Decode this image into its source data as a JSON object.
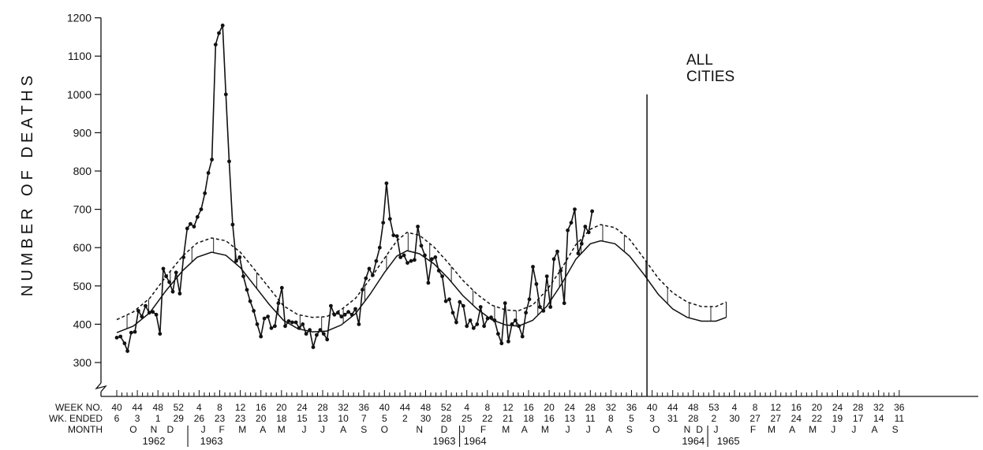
{
  "chart_data": {
    "type": "line",
    "title": "",
    "ylabel": "NUMBER OF DEATHS",
    "ylim": [
      300,
      1200
    ],
    "yticks": [
      300,
      400,
      500,
      600,
      700,
      800,
      900,
      1000,
      1100,
      1200
    ],
    "y_axis_break": true,
    "grid": false,
    "annotation": "ALL\nCITIES",
    "x_row_labels": [
      "WEEK NO.",
      "WK. ENDED",
      "MONTH"
    ],
    "week_no": [
      "40",
      "44",
      "48",
      "52",
      "4",
      "8",
      "12",
      "16",
      "20",
      "24",
      "28",
      "32",
      "36",
      "40",
      "44",
      "48",
      "52",
      "4",
      "8",
      "12",
      "16",
      "20",
      "24",
      "28",
      "32",
      "36",
      "40",
      "44",
      "48",
      "53",
      "4",
      "8",
      "12",
      "16",
      "20",
      "24",
      "28",
      "32",
      "36"
    ],
    "wk_ended": [
      "6",
      "3",
      "1",
      "29",
      "26",
      "23",
      "23",
      "20",
      "18",
      "15",
      "13",
      "10",
      "7",
      "5",
      "2",
      "30",
      "28",
      "25",
      "22",
      "21",
      "18",
      "16",
      "13",
      "11",
      "8",
      "5",
      "3",
      "31",
      "28",
      "2",
      "30",
      "27",
      "27",
      "24",
      "22",
      "19",
      "17",
      "14",
      "11"
    ],
    "month": [
      {
        "label": "O",
        "tick": 0.8
      },
      {
        "label": "N",
        "tick": 1.8
      },
      {
        "label": "D",
        "tick": 2.6
      },
      {
        "label": "J",
        "tick": 4.2
      },
      {
        "label": "F",
        "tick": 5.1
      },
      {
        "label": "M",
        "tick": 6.1
      },
      {
        "label": "A",
        "tick": 7.1
      },
      {
        "label": "M",
        "tick": 8.0
      },
      {
        "label": "J",
        "tick": 9.1
      },
      {
        "label": "J",
        "tick": 10.0
      },
      {
        "label": "A",
        "tick": 11.0
      },
      {
        "label": "S",
        "tick": 12.0
      },
      {
        "label": "O",
        "tick": 13.0
      },
      {
        "label": "N",
        "tick": 14.7
      },
      {
        "label": "D",
        "tick": 15.9
      },
      {
        "label": "J",
        "tick": 16.8
      },
      {
        "label": "F",
        "tick": 17.8
      },
      {
        "label": "M",
        "tick": 18.9
      },
      {
        "label": "A",
        "tick": 19.8
      },
      {
        "label": "M",
        "tick": 20.8
      },
      {
        "label": "J",
        "tick": 21.9
      },
      {
        "label": "J",
        "tick": 22.9
      },
      {
        "label": "A",
        "tick": 23.9
      },
      {
        "label": "S",
        "tick": 24.9
      },
      {
        "label": "O",
        "tick": 26.2
      },
      {
        "label": "N",
        "tick": 27.7
      },
      {
        "label": "D",
        "tick": 28.3
      },
      {
        "label": "J",
        "tick": 29.1
      },
      {
        "label": "F",
        "tick": 30.9
      },
      {
        "label": "M",
        "tick": 31.8
      },
      {
        "label": "A",
        "tick": 32.8
      },
      {
        "label": "M",
        "tick": 33.8
      },
      {
        "label": "J",
        "tick": 34.8
      },
      {
        "label": "J",
        "tick": 35.8
      },
      {
        "label": "A",
        "tick": 36.8
      },
      {
        "label": "S",
        "tick": 37.8
      }
    ],
    "years": [
      {
        "label": "1962",
        "tick": 1.8
      },
      {
        "label": "1963",
        "tick": 4.6
      },
      {
        "label": "1963",
        "tick": 15.9
      },
      {
        "label": "1964",
        "tick": 17.4
      },
      {
        "label": "1964",
        "tick": 28.0
      },
      {
        "label": "1965",
        "tick": 29.7
      }
    ],
    "year_dividers": [
      3.45,
      16.65,
      28.7
    ],
    "vertical_marker_tick": 25.75,
    "series": [
      {
        "kind": "observed",
        "points": [
          [
            0.0,
            365
          ],
          [
            0.18,
            368
          ],
          [
            0.38,
            350
          ],
          [
            0.52,
            330
          ],
          [
            0.7,
            378
          ],
          [
            0.88,
            380
          ],
          [
            1.05,
            435
          ],
          [
            1.22,
            420
          ],
          [
            1.4,
            448
          ],
          [
            1.58,
            430
          ],
          [
            1.75,
            432
          ],
          [
            1.92,
            425
          ],
          [
            2.1,
            375
          ],
          [
            2.26,
            545
          ],
          [
            2.4,
            525
          ],
          [
            2.55,
            510
          ],
          [
            2.72,
            485
          ],
          [
            2.88,
            535
          ],
          [
            3.06,
            480
          ],
          [
            3.24,
            575
          ],
          [
            3.42,
            650
          ],
          [
            3.58,
            662
          ],
          [
            3.75,
            655
          ],
          [
            3.92,
            680
          ],
          [
            4.1,
            700
          ],
          [
            4.28,
            742
          ],
          [
            4.45,
            795
          ],
          [
            4.62,
            830
          ],
          [
            4.8,
            1130
          ],
          [
            4.96,
            1160
          ],
          [
            5.14,
            1180
          ],
          [
            5.3,
            1000
          ],
          [
            5.46,
            825
          ],
          [
            5.63,
            660
          ],
          [
            5.8,
            565
          ],
          [
            5.97,
            575
          ],
          [
            6.15,
            525
          ],
          [
            6.32,
            490
          ],
          [
            6.48,
            460
          ],
          [
            6.65,
            435
          ],
          [
            6.82,
            400
          ],
          [
            7.0,
            368
          ],
          [
            7.17,
            415
          ],
          [
            7.34,
            420
          ],
          [
            7.51,
            390
          ],
          [
            7.68,
            395
          ],
          [
            7.85,
            455
          ],
          [
            8.02,
            495
          ],
          [
            8.18,
            395
          ],
          [
            8.35,
            408
          ],
          [
            8.52,
            405
          ],
          [
            8.7,
            405
          ],
          [
            8.86,
            390
          ],
          [
            9.03,
            400
          ],
          [
            9.2,
            375
          ],
          [
            9.37,
            385
          ],
          [
            9.54,
            340
          ],
          [
            9.71,
            372
          ],
          [
            9.88,
            385
          ],
          [
            10.05,
            375
          ],
          [
            10.22,
            360
          ],
          [
            10.4,
            448
          ],
          [
            10.57,
            425
          ],
          [
            10.74,
            430
          ],
          [
            10.91,
            420
          ],
          [
            11.08,
            425
          ],
          [
            11.25,
            432
          ],
          [
            11.42,
            425
          ],
          [
            11.59,
            440
          ],
          [
            11.76,
            400
          ],
          [
            11.93,
            490
          ],
          [
            12.1,
            520
          ],
          [
            12.26,
            545
          ],
          [
            12.43,
            528
          ],
          [
            12.6,
            565
          ],
          [
            12.77,
            600
          ],
          [
            12.94,
            665
          ],
          [
            13.1,
            768
          ],
          [
            13.27,
            675
          ],
          [
            13.44,
            632
          ],
          [
            13.61,
            630
          ],
          [
            13.78,
            575
          ],
          [
            13.95,
            580
          ],
          [
            14.12,
            560
          ],
          [
            14.29,
            565
          ],
          [
            14.46,
            568
          ],
          [
            14.62,
            655
          ],
          [
            14.79,
            605
          ],
          [
            14.96,
            580
          ],
          [
            15.13,
            508
          ],
          [
            15.3,
            570
          ],
          [
            15.47,
            575
          ],
          [
            15.64,
            540
          ],
          [
            15.81,
            525
          ],
          [
            15.98,
            460
          ],
          [
            16.15,
            465
          ],
          [
            16.32,
            430
          ],
          [
            16.49,
            405
          ],
          [
            16.66,
            458
          ],
          [
            16.83,
            448
          ],
          [
            17.0,
            395
          ],
          [
            17.17,
            410
          ],
          [
            17.33,
            390
          ],
          [
            17.5,
            400
          ],
          [
            17.67,
            445
          ],
          [
            17.84,
            395
          ],
          [
            18.01,
            415
          ],
          [
            18.18,
            418
          ],
          [
            18.35,
            410
          ],
          [
            18.52,
            375
          ],
          [
            18.69,
            350
          ],
          [
            18.86,
            455
          ],
          [
            19.02,
            355
          ],
          [
            19.19,
            400
          ],
          [
            19.36,
            410
          ],
          [
            19.53,
            395
          ],
          [
            19.7,
            368
          ],
          [
            19.87,
            430
          ],
          [
            20.04,
            465
          ],
          [
            20.21,
            550
          ],
          [
            20.38,
            505
          ],
          [
            20.55,
            445
          ],
          [
            20.72,
            435
          ],
          [
            20.89,
            525
          ],
          [
            21.06,
            445
          ],
          [
            21.23,
            570
          ],
          [
            21.4,
            590
          ],
          [
            21.56,
            540
          ],
          [
            21.73,
            455
          ],
          [
            21.9,
            645
          ],
          [
            22.07,
            665
          ],
          [
            22.24,
            700
          ],
          [
            22.41,
            585
          ],
          [
            22.58,
            610
          ],
          [
            22.75,
            655
          ],
          [
            22.92,
            640
          ],
          [
            23.09,
            695
          ]
        ]
      },
      {
        "kind": "seasonal_expected",
        "description": "solid baseline curve",
        "points": [
          [
            0,
            378
          ],
          [
            0.8,
            395
          ],
          [
            1.6,
            430
          ],
          [
            2.4,
            488
          ],
          [
            3.2,
            540
          ],
          [
            3.9,
            575
          ],
          [
            4.6,
            588
          ],
          [
            5.3,
            580
          ],
          [
            6.0,
            548
          ],
          [
            6.7,
            500
          ],
          [
            7.4,
            452
          ],
          [
            8.1,
            410
          ],
          [
            8.8,
            388
          ],
          [
            9.5,
            380
          ],
          [
            10.2,
            382
          ],
          [
            10.9,
            398
          ],
          [
            11.6,
            428
          ],
          [
            12.3,
            478
          ],
          [
            13.0,
            535
          ],
          [
            13.6,
            578
          ],
          [
            14.1,
            592
          ],
          [
            14.7,
            584
          ],
          [
            15.4,
            558
          ],
          [
            16.1,
            520
          ],
          [
            16.8,
            475
          ],
          [
            17.5,
            440
          ],
          [
            18.2,
            412
          ],
          [
            18.9,
            398
          ],
          [
            19.5,
            395
          ],
          [
            20.2,
            410
          ],
          [
            20.9,
            448
          ],
          [
            21.6,
            505
          ],
          [
            22.3,
            570
          ],
          [
            23.0,
            610
          ],
          [
            23.5,
            618
          ],
          [
            24.2,
            610
          ],
          [
            24.9,
            578
          ],
          [
            25.6,
            530
          ],
          [
            26.3,
            478
          ],
          [
            27.0,
            440
          ],
          [
            27.7,
            418
          ],
          [
            28.4,
            408
          ],
          [
            29.1,
            408
          ],
          [
            29.6,
            418
          ]
        ]
      },
      {
        "kind": "epidemic_threshold",
        "description": "dashed upper curve",
        "points": [
          [
            0,
            412
          ],
          [
            0.8,
            432
          ],
          [
            1.6,
            468
          ],
          [
            2.4,
            525
          ],
          [
            3.2,
            578
          ],
          [
            3.9,
            612
          ],
          [
            4.6,
            625
          ],
          [
            5.3,
            618
          ],
          [
            6.0,
            588
          ],
          [
            6.7,
            542
          ],
          [
            7.4,
            495
          ],
          [
            8.1,
            448
          ],
          [
            8.8,
            425
          ],
          [
            9.5,
            418
          ],
          [
            10.2,
            420
          ],
          [
            10.9,
            438
          ],
          [
            11.6,
            468
          ],
          [
            12.3,
            518
          ],
          [
            13.0,
            572
          ],
          [
            13.6,
            618
          ],
          [
            14.1,
            640
          ],
          [
            14.7,
            632
          ],
          [
            15.4,
            602
          ],
          [
            16.1,
            560
          ],
          [
            16.8,
            515
          ],
          [
            17.5,
            478
          ],
          [
            17.7,
            470
          ],
          [
            18.2,
            450
          ],
          [
            18.9,
            437
          ],
          [
            19.5,
            435
          ],
          [
            20.2,
            450
          ],
          [
            20.9,
            490
          ],
          [
            21.6,
            545
          ],
          [
            22.3,
            608
          ],
          [
            23.0,
            648
          ],
          [
            23.5,
            660
          ],
          [
            24.2,
            652
          ],
          [
            24.9,
            622
          ],
          [
            25.6,
            572
          ],
          [
            26.3,
            520
          ],
          [
            27.0,
            482
          ],
          [
            27.7,
            458
          ],
          [
            28.4,
            446
          ],
          [
            29.1,
            446
          ],
          [
            29.6,
            458
          ]
        ]
      }
    ]
  }
}
